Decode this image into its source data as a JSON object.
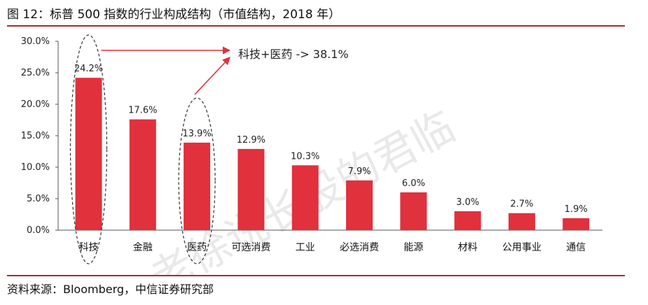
{
  "figure": {
    "title": "图 12：标普 500 指数的行业构成结构（市值结构，2018 年）",
    "source": "资料来源：Bloomberg，中信证券研究部",
    "watermark": "老徐说长股的君临"
  },
  "colors": {
    "bar": "#e0313d",
    "arrow": "#e0313d",
    "rule": "#a0302f"
  },
  "chart_data": {
    "type": "bar",
    "categories": [
      "科技",
      "金融",
      "医药",
      "可选消费",
      "工业",
      "必选消费",
      "能源",
      "材料",
      "公用事业",
      "通信"
    ],
    "values": [
      24.2,
      17.6,
      13.9,
      12.9,
      10.3,
      7.9,
      6.0,
      3.0,
      2.7,
      1.9
    ],
    "data_labels": [
      "24.2%",
      "17.6%",
      "13.9%",
      "12.9%",
      "10.3%",
      "7.9%",
      "6.0%",
      "3.0%",
      "2.7%",
      "1.9%"
    ],
    "yticks": [
      0,
      5,
      10,
      15,
      20,
      25,
      30
    ],
    "ytick_labels": [
      "0.0%",
      "5.0%",
      "10.0%",
      "15.0%",
      "20.0%",
      "25.0%",
      "30.0%"
    ],
    "ylim": [
      0,
      30
    ],
    "grid": false,
    "annotation": "科技+医药 -> 38.1%",
    "highlighted_categories": [
      "科技",
      "医药"
    ]
  }
}
